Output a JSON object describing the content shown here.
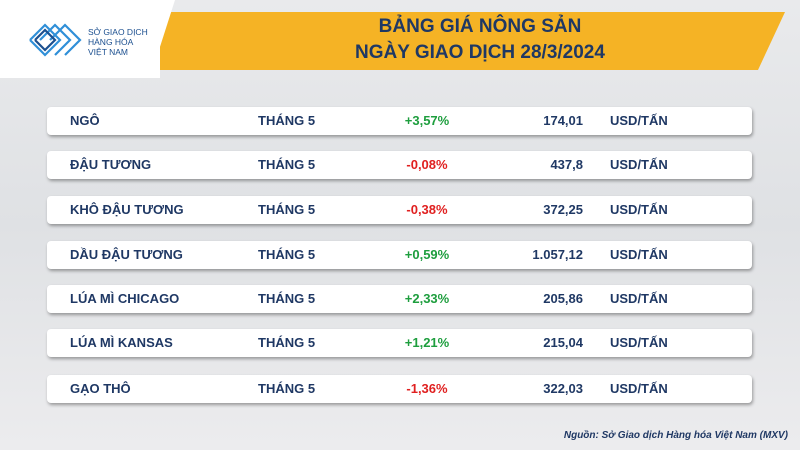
{
  "header": {
    "logo": [
      "SỞ GIAO DỊCH",
      "HÀNG HÓA",
      "VIỆT NAM"
    ],
    "title": [
      "BẢNG GIÁ NÔNG SẢN",
      "NGÀY GIAO DỊCH 28/3/2024"
    ]
  },
  "table": {
    "rows": [
      [
        "NGÔ",
        "THÁNG 5",
        "+3,57%",
        "174,01",
        "USD/TẤN"
      ],
      [
        "ĐẬU TƯƠNG",
        "THÁNG 5",
        "-0,08%",
        "437,8",
        "USD/TẤN"
      ],
      [
        "KHÔ ĐẬU TƯƠNG",
        "THÁNG 5",
        "-0,38%",
        "372,25",
        "USD/TẤN"
      ],
      [
        "DẦU ĐẬU TƯƠNG",
        "THÁNG 5",
        "+0,59%",
        "1.057,12",
        "USD/TẤN"
      ],
      [
        "LÚA MÌ CHICAGO",
        "THÁNG 5",
        "+2,33%",
        "205,86",
        "USD/TẤN"
      ],
      [
        "LÚA MÌ KANSAS",
        "THÁNG 5",
        "+1,21%",
        "215,04",
        "USD/TẤN"
      ],
      [
        "GẠO THÔ",
        "THÁNG 5",
        "-1,36%",
        "322,03",
        "USD/TẤN"
      ]
    ]
  },
  "source": "Nguồn: Sở Giao dịch Hàng hóa Việt Nam (MXV)"
}
